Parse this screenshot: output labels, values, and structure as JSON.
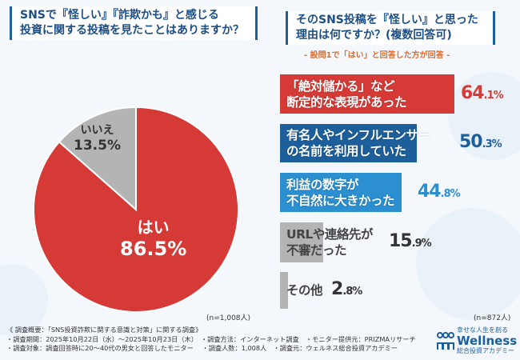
{
  "left": {
    "title_line1": "SNSで『怪しい』『詐欺かも』と感じる",
    "title_line2": "投資に関する投稿を見たことはありますか？",
    "n": "(n=1,008人)"
  },
  "right": {
    "title_line1": "そのSNS投稿を『怪しい』と思った",
    "title_line2": "理由は何ですか？(複数回答可)",
    "subtitle": "-  設問1で「はい」と回答した方が回答  -",
    "n": "(n=872人)"
  },
  "chart_data": [
    {
      "type": "pie",
      "slices": [
        {
          "label": "はい",
          "value": 86.5,
          "display": "86.5%",
          "color": "#d63a36"
        },
        {
          "label": "いいえ",
          "value": 13.5,
          "display": "13.5%",
          "color": "#b4b4b4"
        }
      ]
    },
    {
      "type": "bar",
      "orientation": "horizontal",
      "categories": [
        [
          "「絶対儲かる」など",
          "断定的な表現があった"
        ],
        [
          "有名人やインフルエンサー",
          "の名前を利用していた"
        ],
        [
          "利益の数字が",
          "不自然に大きかった"
        ],
        [
          "URLや連絡先が",
          "不審だった"
        ],
        [
          "その他"
        ]
      ],
      "values": [
        64.1,
        50.3,
        44.8,
        15.9,
        2.8
      ],
      "labels": [
        "64.1",
        "50.3",
        "44.8",
        "15.9",
        "2.8"
      ],
      "unit": "%",
      "colors": [
        "#d63a36",
        "#1d5f9a",
        "#2b8fd0",
        "#b4b4b4",
        "#b4b4b4"
      ],
      "label_colors": [
        "#d63a36",
        "#1d5f9a",
        "#2b8fd0",
        "#333333",
        "#333333"
      ]
    }
  ],
  "footer": {
    "line1": "《 調査概要：「SNS投資詐欺に関する意識と対策」に関する調査》",
    "line2": "・調査期間：2025年10月22日（水）～2025年10月23日（木）　・調査方法：インターネット調査　・モニター提供元：PRIZMAリサーチ",
    "line3": "・調査対象：調査回答時に20～40代の男女と回答したモニター　 ・調査人数：1,008人　・調査元：ウェルネス総合投資アカデミー"
  },
  "logo": {
    "tagline": "幸せな人生を創る",
    "name": "Wellness",
    "sub": "総合投資アカデミー"
  }
}
